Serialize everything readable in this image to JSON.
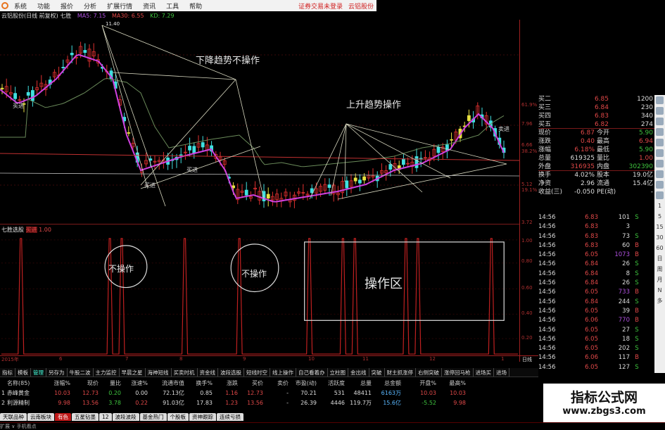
{
  "menu": {
    "items": [
      "系统",
      "功能",
      "报价",
      "分析",
      "扩展行情",
      "资讯",
      "工具",
      "帮助"
    ],
    "right": [
      "证券交易未登录",
      "云铝股份"
    ]
  },
  "title": {
    "stock": "云铝股份(日线 前复权) 七胜",
    "ma5": "MA5: 7.15",
    "ma30": "MA30: 6.55",
    "kd": "KD: 7.29"
  },
  "chart": {
    "high_label": "11.40",
    "buy_label": "买进",
    "sell_label": "卖进",
    "annotation_down": "下降趋势不操作",
    "annotation_up": "上升趋势操作",
    "right_axis": [
      "61.9%",
      "7.96",
      "6.66",
      "38.2%",
      "5.12",
      "19.1%",
      "3.72"
    ],
    "colors": {
      "up": "#e03030",
      "down": "#40e0e0",
      "ma5": "#d040e0",
      "ma30": "#c03030",
      "line": "#d8d8c0"
    }
  },
  "indicator": {
    "name": "七胜选股",
    "signal": "买进",
    "value": "1.00",
    "axis": [
      "1.00",
      "0.80",
      "0.60",
      "0.40",
      "0.20"
    ],
    "no_op_1": "不操作",
    "no_op_2": "不操作",
    "op_zone": "操作区"
  },
  "xaxis": {
    "labels": [
      "2015年",
      "6",
      "7",
      "8",
      "9",
      "10",
      "11",
      "12",
      "1"
    ],
    "period": "日线"
  },
  "tabs": [
    "指标",
    "模板",
    "管理",
    "另存为",
    "牛股二波",
    "主力监控",
    "早晨之星",
    "海神短线",
    "买卖时机",
    "资金线",
    "波段选股",
    "短线时空",
    "线上操作",
    "自己看着办",
    "立柱图",
    "金出线",
    "突破",
    "财主抓涨停",
    "右侧突破",
    "涨停回马枪",
    "进场买",
    "进场"
  ],
  "table": {
    "headers": [
      "名称(85)",
      "涨幅%",
      "现价",
      "量比",
      "涨速%",
      "流通市值",
      "换手%",
      "涨跌",
      "买价",
      "卖价",
      "市盈(动)",
      "活跃度",
      "总量",
      "总金额",
      "开盘%",
      "最高%"
    ],
    "rows": [
      [
        "1",
        "赤峰黄金",
        "10.03",
        "12.73",
        "0.20",
        "0.00",
        "72.13亿",
        "0.85",
        "1.16",
        "12.73",
        "-",
        "70.21",
        "531",
        "48411",
        "6163万",
        "10.03",
        "10.03"
      ],
      [
        "2",
        "利源精制",
        "9.98",
        "13.56",
        "3.78",
        "0.22",
        "91.03亿",
        "17.83",
        "1.23",
        "13.56",
        "-",
        "26.39",
        "4446",
        "119.7万",
        "15.6亿",
        "-5.52",
        "9.98"
      ]
    ]
  },
  "bottom_tabs": [
    "天联品种",
    "云南板块",
    "有色",
    "五星钻墨",
    "12",
    "波段波段",
    "基金热门",
    "个股板",
    "资神跟踪",
    "连续亏损"
  ],
  "status": "扩展 ∨  手机看点",
  "panel": {
    "book": [
      [
        "买二",
        "6.85",
        "1200"
      ],
      [
        "买三",
        "6.84",
        "230"
      ],
      [
        "买四",
        "6.83",
        "340"
      ],
      [
        "买五",
        "6.82",
        "274"
      ]
    ],
    "quote": [
      [
        "现价",
        "6.87",
        "今开",
        "5.90"
      ],
      [
        "涨跌",
        "0.40",
        "最高",
        "6.94"
      ],
      [
        "涨幅",
        "6.18%",
        "最低",
        "5.90"
      ],
      [
        "总量",
        "619325",
        "量比",
        "1.00"
      ],
      [
        "外盘",
        "316935",
        "内盘",
        "302390"
      ],
      [
        "换手",
        "4.02%",
        "股本",
        "19.0亿"
      ],
      [
        "净资",
        "2.96",
        "流通",
        "15.4亿"
      ],
      [
        "收益(三)",
        "-0.050",
        "PE(动)",
        "-"
      ]
    ],
    "ticks": [
      [
        "14:56",
        "6.83",
        "101",
        "S"
      ],
      [
        "14:56",
        "6.83",
        "3",
        ""
      ],
      [
        "14:56",
        "6.83",
        "73",
        "S"
      ],
      [
        "14:56",
        "6.83",
        "60",
        "B"
      ],
      [
        "14:56",
        "6.05",
        "1073",
        "B"
      ],
      [
        "14:56",
        "6.84",
        "26",
        "S"
      ],
      [
        "14:56",
        "6.84",
        "8",
        "S"
      ],
      [
        "14:56",
        "6.84",
        "26",
        "S"
      ],
      [
        "14:56",
        "6.05",
        "733",
        "B"
      ],
      [
        "14:56",
        "6.84",
        "244",
        "S"
      ],
      [
        "14:56",
        "6.05",
        "39",
        "B"
      ],
      [
        "14:56",
        "6.06",
        "770",
        "B"
      ],
      [
        "14:56",
        "6.05",
        "27",
        "S"
      ],
      [
        "14:56",
        "6.05",
        "18",
        "S"
      ],
      [
        "14:56",
        "6.05",
        "202",
        "S"
      ],
      [
        "14:56",
        "6.06",
        "117",
        "B"
      ],
      [
        "14:56",
        "6.05",
        "127",
        "S"
      ]
    ]
  },
  "sidebar": [
    "1",
    "5",
    "15",
    "30",
    "60",
    "日",
    "周",
    "月",
    "N",
    "多"
  ],
  "watermark": {
    "title": "指标公式网",
    "url": "www.zbgs3.com"
  }
}
